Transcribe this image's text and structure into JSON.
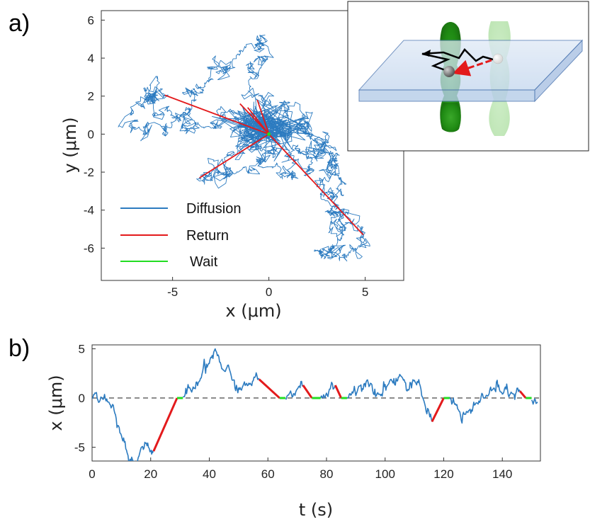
{
  "panel_labels": {
    "a": "a)",
    "b": "b)"
  },
  "colors": {
    "diffusion": "#2c7bc0",
    "return": "#e31a1c",
    "wait": "#22dd22",
    "axis": "#333333",
    "dash": "#666666"
  },
  "chart_data": [
    {
      "id": "panel-a",
      "type": "line",
      "xlabel": "x (μm)",
      "ylabel": "y (μm)",
      "xlim": [
        -8.7,
        7
      ],
      "ylim": [
        -7.7,
        6.5
      ],
      "xticks": [
        -5,
        0,
        5
      ],
      "yticks": [
        -6,
        -4,
        -2,
        0,
        2,
        4,
        6
      ],
      "legend_position": "bottom-left",
      "legend": [
        {
          "name": "Diffusion",
          "color": "#2c7bc0"
        },
        {
          "name": "Return",
          "color": "#e31a1c"
        },
        {
          "name": "Wait",
          "color": "#22dd22"
        }
      ],
      "return_endpoints": [
        {
          "x": -5.4,
          "y": 2.05
        },
        {
          "x": -3.6,
          "y": -2.3
        },
        {
          "x": 4.9,
          "y": -5.3
        },
        {
          "x": -1.5,
          "y": 1.6
        },
        {
          "x": -0.6,
          "y": 1.8
        },
        {
          "x": -1.1,
          "y": 1.4
        }
      ],
      "diffusion_waypoints": [
        {
          "x": 0,
          "y": 0
        },
        {
          "x": -1.5,
          "y": 0.8
        },
        {
          "x": -3.2,
          "y": 0.4
        },
        {
          "x": -5.1,
          "y": 1.0
        },
        {
          "x": -6.5,
          "y": 2.4
        },
        {
          "x": -5.4,
          "y": 2.05
        },
        {
          "x": -7.2,
          "y": 1.0
        },
        {
          "x": -6.6,
          "y": 0.2
        },
        {
          "x": -5.0,
          "y": 0.6
        },
        {
          "x": -3.2,
          "y": 2.8
        },
        {
          "x": -1.5,
          "y": 4.4
        },
        {
          "x": -0.6,
          "y": 5.0
        },
        {
          "x": -0.4,
          "y": 3.5
        },
        {
          "x": -1.0,
          "y": 2.4
        },
        {
          "x": -0.3,
          "y": 1.9
        },
        {
          "x": 0.9,
          "y": 1.2
        },
        {
          "x": 2.0,
          "y": 0.6
        },
        {
          "x": 3.0,
          "y": -0.4
        },
        {
          "x": 2.1,
          "y": -1.6
        },
        {
          "x": 1.2,
          "y": -2.4
        },
        {
          "x": 0.4,
          "y": -1.6
        },
        {
          "x": -1.6,
          "y": -2.0
        },
        {
          "x": -3.6,
          "y": -2.3
        },
        {
          "x": -2.1,
          "y": -1.1
        },
        {
          "x": -0.6,
          "y": -0.7
        },
        {
          "x": 1.8,
          "y": -0.9
        },
        {
          "x": 3.5,
          "y": -1.0
        },
        {
          "x": 3.8,
          "y": -2.6
        },
        {
          "x": 3.2,
          "y": -4.2
        },
        {
          "x": 3.8,
          "y": -5.4
        },
        {
          "x": 2.6,
          "y": -6.3
        },
        {
          "x": 4.1,
          "y": -6.4
        },
        {
          "x": 4.9,
          "y": -5.3
        },
        {
          "x": 2.7,
          "y": -3.4
        },
        {
          "x": 3.2,
          "y": -1.2
        },
        {
          "x": 2.0,
          "y": 0.2
        },
        {
          "x": 0.7,
          "y": 0.1
        }
      ]
    },
    {
      "id": "panel-b",
      "type": "line",
      "xlabel": "t (s)",
      "ylabel": "x (μm)",
      "xlim": [
        0,
        153
      ],
      "ylim": [
        -6.4,
        5.4
      ],
      "xticks": [
        0,
        20,
        40,
        60,
        80,
        100,
        120,
        140
      ],
      "yticks": [
        -5,
        0,
        5
      ],
      "baseline": 0,
      "diffusion_waypoints": [
        [
          0,
          0
        ],
        [
          3,
          0.1
        ],
        [
          6,
          -0.6
        ],
        [
          8,
          -1.7
        ],
        [
          10,
          -3.8
        ],
        [
          12,
          -5.6
        ],
        [
          14,
          -6.4
        ],
        [
          16,
          -5.9
        ],
        [
          18,
          -4.5
        ],
        [
          20,
          -5.4
        ],
        [
          21,
          -5.4
        ],
        [
          31,
          0.1
        ],
        [
          34,
          0.6
        ],
        [
          37,
          2.0
        ],
        [
          40,
          3.5
        ],
        [
          42,
          5.0
        ],
        [
          45,
          2.8
        ],
        [
          48,
          1.8
        ],
        [
          51,
          0.8
        ],
        [
          54,
          1.5
        ],
        [
          57,
          1.9
        ],
        [
          66,
          -0.1
        ],
        [
          70,
          0.9
        ],
        [
          72,
          1.3
        ],
        [
          78,
          0.0
        ],
        [
          81,
          0.9
        ],
        [
          83,
          1.3
        ],
        [
          87,
          0.0
        ],
        [
          91,
          1.2
        ],
        [
          95,
          1.5
        ],
        [
          98,
          0.4
        ],
        [
          102,
          1.9
        ],
        [
          105,
          2.4
        ],
        [
          108,
          0.8
        ],
        [
          110,
          1.8
        ],
        [
          113,
          -0.1
        ],
        [
          116,
          -2.4
        ],
        [
          122,
          0.1
        ],
        [
          125,
          -1.2
        ],
        [
          128,
          -1.4
        ],
        [
          131,
          -0.5
        ],
        [
          134,
          0.0
        ],
        [
          137,
          1.0
        ],
        [
          140,
          0.4
        ],
        [
          143,
          0.6
        ],
        [
          146,
          0.7
        ],
        [
          150,
          -0.2
        ],
        [
          152,
          -0.4
        ]
      ],
      "returns": [
        {
          "t_start": 21,
          "x_start": -5.4,
          "t_end": 29,
          "x_end": 0
        },
        {
          "t_start": 57,
          "x_start": 1.9,
          "t_end": 64,
          "x_end": 0
        },
        {
          "t_start": 72,
          "x_start": 1.3,
          "t_end": 75,
          "x_end": 0
        },
        {
          "t_start": 83,
          "x_start": 1.3,
          "t_end": 85,
          "x_end": 0
        },
        {
          "t_start": 116,
          "x_start": -2.4,
          "t_end": 120,
          "x_end": 0
        },
        {
          "t_start": 146,
          "x_start": 0.7,
          "t_end": 148,
          "x_end": 0
        }
      ],
      "waits": [
        {
          "t_start": 29,
          "t_end": 31
        },
        {
          "t_start": 64,
          "t_end": 66
        },
        {
          "t_start": 75,
          "t_end": 78
        },
        {
          "t_start": 85,
          "t_end": 87
        },
        {
          "t_start": 120,
          "t_end": 122
        },
        {
          "t_start": 148,
          "t_end": 150
        }
      ]
    }
  ],
  "inset": {
    "illustration": "optical-trap-diagram"
  }
}
